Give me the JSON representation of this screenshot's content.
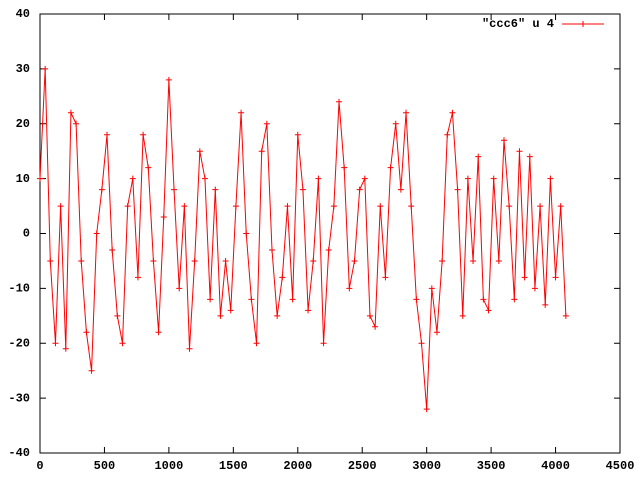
{
  "chart_data": {
    "type": "line",
    "legend_position": "top-right",
    "x": [
      0,
      40,
      80,
      120,
      160,
      200,
      240,
      280,
      320,
      360,
      400,
      440,
      480,
      520,
      560,
      600,
      640,
      680,
      720,
      760,
      800,
      840,
      880,
      920,
      960,
      1000,
      1040,
      1080,
      1120,
      1160,
      1200,
      1240,
      1280,
      1320,
      1360,
      1400,
      1440,
      1480,
      1520,
      1560,
      1600,
      1640,
      1680,
      1720,
      1760,
      1800,
      1840,
      1880,
      1920,
      1960,
      2000,
      2040,
      2080,
      2120,
      2160,
      2200,
      2240,
      2280,
      2320,
      2360,
      2400,
      2440,
      2480,
      2520,
      2560,
      2600,
      2640,
      2680,
      2720,
      2760,
      2800,
      2840,
      2880,
      2920,
      2960,
      3000,
      3040,
      3080,
      3120,
      3160,
      3200,
      3240,
      3280,
      3320,
      3360,
      3400,
      3440,
      3480,
      3520,
      3560,
      3600,
      3640,
      3680,
      3720,
      3760,
      3800,
      3840,
      3880,
      3920,
      3960,
      4000,
      4040,
      4080
    ],
    "series": [
      {
        "name": "\"ccc6\" u 4",
        "color": "#ff0000",
        "values": [
          10,
          30,
          -5,
          -20,
          5,
          -21,
          22,
          20,
          -5,
          -18,
          -25,
          0,
          8,
          18,
          -3,
          -15,
          -20,
          5,
          10,
          -8,
          18,
          12,
          -5,
          -18,
          3,
          28,
          8,
          -10,
          5,
          -21,
          -5,
          15,
          10,
          -12,
          8,
          -15,
          -5,
          -14,
          5,
          22,
          0,
          -12,
          -20,
          15,
          20,
          -3,
          -15,
          -8,
          5,
          -12,
          18,
          8,
          -14,
          -5,
          10,
          -20,
          -3,
          5,
          24,
          12,
          -10,
          -5,
          8,
          10,
          -15,
          -17,
          5,
          -8,
          12,
          20,
          8,
          22,
          5,
          -12,
          -20,
          -32,
          -10,
          -18,
          -5,
          18,
          22,
          8,
          -15,
          10,
          -5,
          14,
          -12,
          -14,
          10,
          -5,
          17,
          5,
          -12,
          15,
          -8,
          14,
          -10,
          5,
          -13,
          10,
          -8,
          5,
          -15
        ]
      }
    ],
    "xlim": [
      0,
      4500
    ],
    "xticks": [
      0,
      500,
      1000,
      1500,
      2000,
      2500,
      3000,
      3500,
      4000,
      4500
    ],
    "ylim": [
      -40,
      40
    ],
    "yticks": [
      -40,
      -30,
      -20,
      -10,
      0,
      10,
      20,
      30,
      40
    ]
  }
}
